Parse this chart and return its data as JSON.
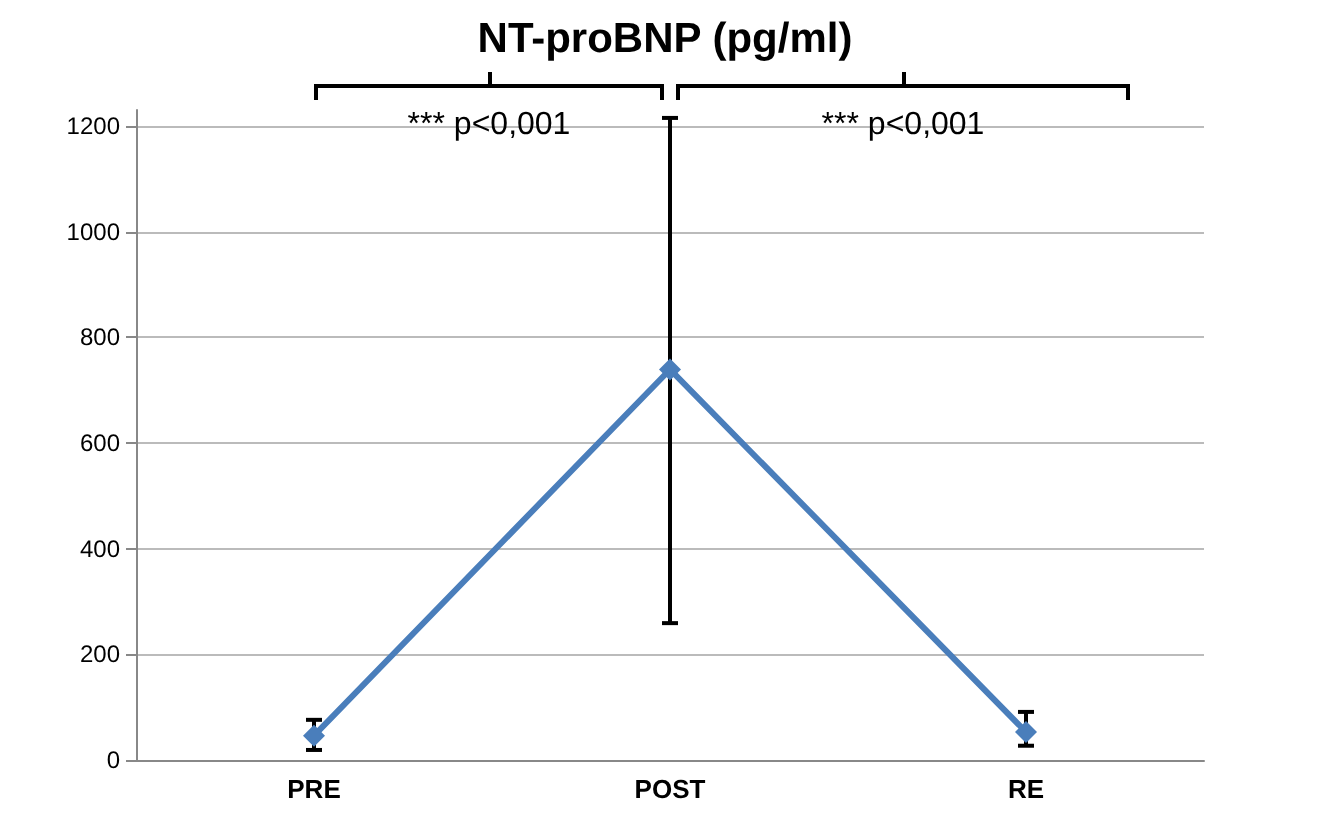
{
  "chart_data": {
    "type": "line",
    "title": "NT-proBNP (pg/ml)",
    "categories": [
      "PRE",
      "POST",
      "RE"
    ],
    "series": [
      {
        "color": "#4a7ebb",
        "values": [
          46,
          739,
          53
        ],
        "errors": [
          [
            19,
            76
          ],
          [
            259,
            1215
          ],
          [
            27,
            91
          ]
        ]
      }
    ],
    "ylim": [
      0,
      1230
    ],
    "yticks": [
      0,
      200,
      400,
      600,
      800,
      1000,
      1200
    ],
    "grid": "y",
    "marker": "diamond",
    "line_style": "solid",
    "annotations": [
      "*** p<0,001",
      "*** p<0,001"
    ]
  }
}
